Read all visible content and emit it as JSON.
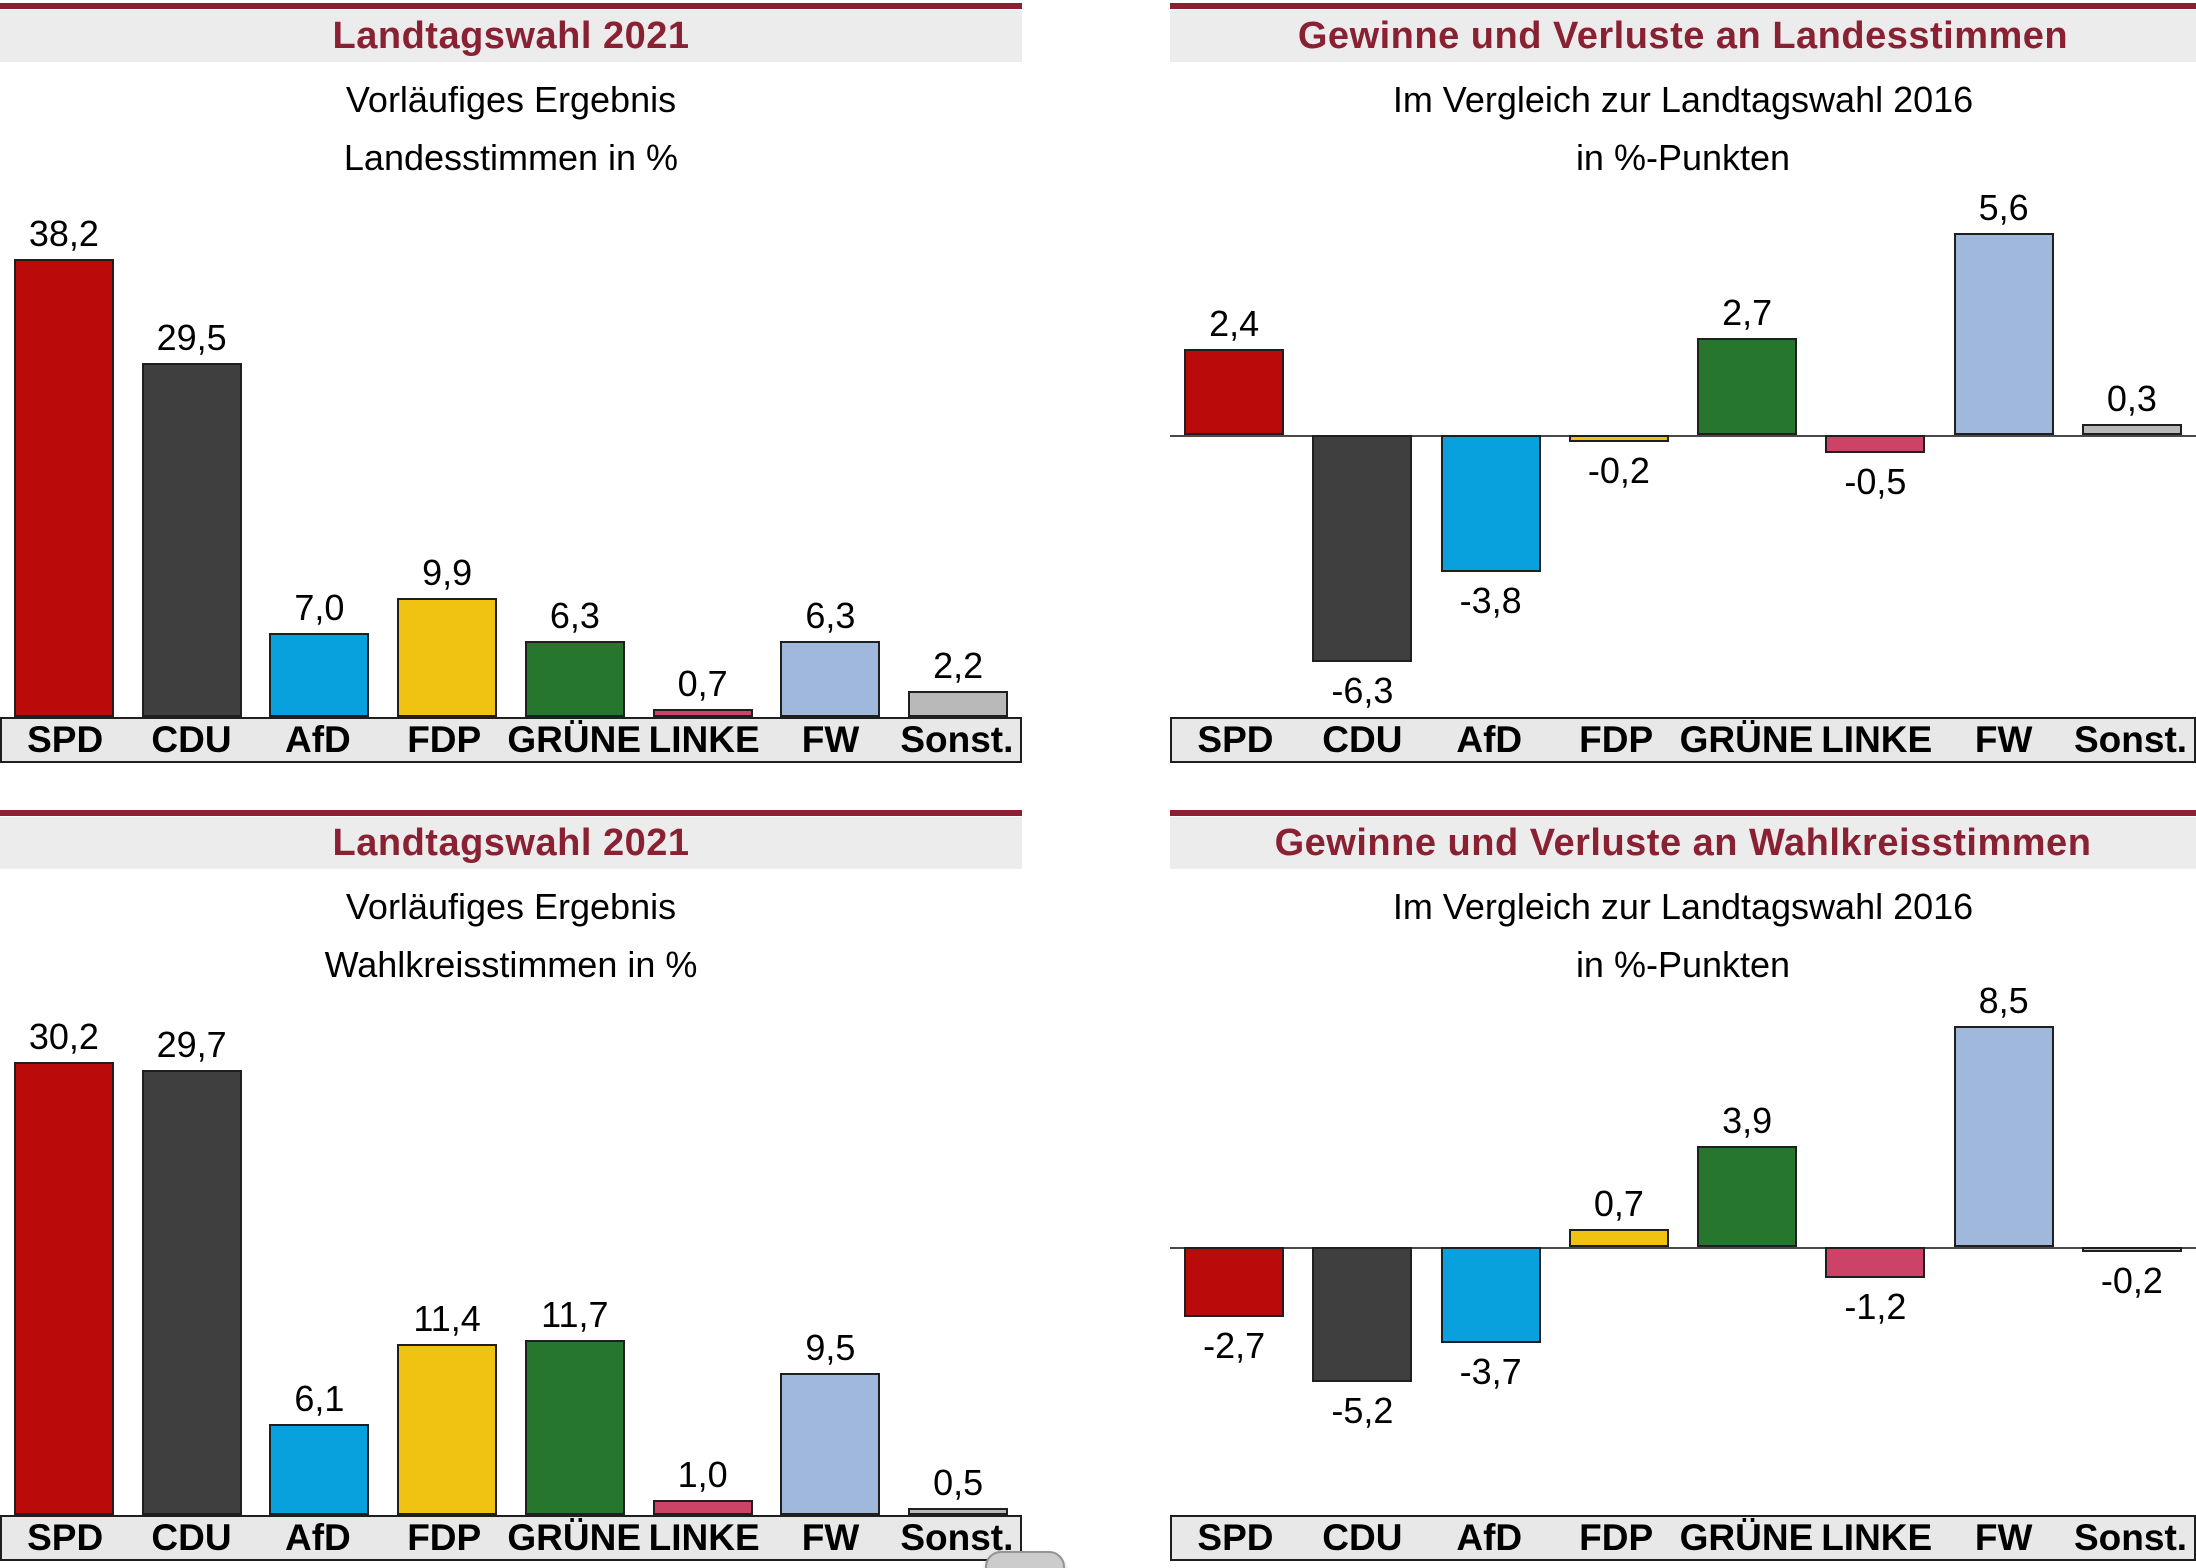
{
  "page": {
    "accent_maroon": "#8a2133",
    "header_band_bg": "#ececec",
    "axis_band_bg": "#e8e8e8",
    "background": "#ffffff"
  },
  "party_colors": {
    "SPD": "#bb0a0a",
    "CDU": "#3f3f3f",
    "AfD": "#09a1dd",
    "FDP": "#f0c313",
    "GRÜNE": "#27762e",
    "LINKE": "#cd4367",
    "FW": "#9fb8dc",
    "Sonst.": "#b9b9b9"
  },
  "icons": {
    "scroll_indicator": "gray rounded pill peeking from bottom edge"
  },
  "chart_data": [
    {
      "id": "landesstimmen-ergebnis",
      "type": "bar",
      "title": "Landtagswahl 2021",
      "subtitle_lines": [
        "Vorläufiges Ergebnis",
        "Landesstimmen in %"
      ],
      "categories": [
        "SPD",
        "CDU",
        "AfD",
        "FDP",
        "GRÜNE",
        "LINKE",
        "FW",
        "Sonst."
      ],
      "values": [
        38.2,
        29.5,
        7.0,
        9.9,
        6.3,
        0.7,
        6.3,
        2.2
      ],
      "value_labels": [
        "38,2",
        "29,5",
        "7,0",
        "9,9",
        "6,3",
        "0,7",
        "6,3",
        "2,2"
      ],
      "unit": "%",
      "ylim": [
        0,
        44
      ],
      "grid": false,
      "legend": false
    },
    {
      "id": "gewinne-verluste-landesstimmen",
      "type": "bar",
      "title": "Gewinne und Verluste an Landesstimmen",
      "subtitle_lines": [
        "Im Vergleich zur Landtagswahl 2016",
        "in %-Punkten"
      ],
      "categories": [
        "SPD",
        "CDU",
        "AfD",
        "FDP",
        "GRÜNE",
        "LINKE",
        "FW",
        "Sonst."
      ],
      "values": [
        2.4,
        -6.3,
        -3.8,
        -0.2,
        2.7,
        -0.5,
        5.6,
        0.3
      ],
      "value_labels": [
        "2,4",
        "-6,3",
        "-3,8",
        "-0,2",
        "2,7",
        "-0,5",
        "5,6",
        "0,3"
      ],
      "unit": "%-Punkte",
      "ylim": [
        -7.5,
        7.5
      ],
      "grid": false,
      "legend": false
    },
    {
      "id": "wahlkreisstimmen-ergebnis",
      "type": "bar",
      "title": "Landtagswahl 2021",
      "subtitle_lines": [
        "Vorläufiges Ergebnis",
        "Wahlkreisstimmen in %"
      ],
      "categories": [
        "SPD",
        "CDU",
        "AfD",
        "FDP",
        "GRÜNE",
        "LINKE",
        "FW",
        "Sonst."
      ],
      "values": [
        30.2,
        29.7,
        6.1,
        11.4,
        11.7,
        1.0,
        9.5,
        0.5
      ],
      "value_labels": [
        "30,2",
        "29,7",
        "6,1",
        "11,4",
        "11,7",
        "1,0",
        "9,5",
        "0,5"
      ],
      "unit": "%",
      "ylim": [
        0,
        35
      ],
      "grid": false,
      "legend": false
    },
    {
      "id": "gewinne-verluste-wahlkreisstimmen",
      "type": "bar",
      "title": "Gewinne und Verluste an Wahlkreisstimmen",
      "subtitle_lines": [
        "Im Vergleich zur Landtagswahl 2016",
        "in %-Punkten"
      ],
      "categories": [
        "SPD",
        "CDU",
        "AfD",
        "FDP",
        "GRÜNE",
        "LINKE",
        "FW",
        "Sonst."
      ],
      "values": [
        -2.7,
        -5.2,
        -3.7,
        0.7,
        3.9,
        -1.2,
        8.5,
        -0.2
      ],
      "value_labels": [
        "-2,7",
        "-5,2",
        "-3,7",
        "0,7",
        "3,9",
        "-1,2",
        "8,5",
        "-0,2"
      ],
      "unit": "%-Punkte",
      "ylim": [
        -7.5,
        10.5
      ],
      "grid": false,
      "legend": false
    }
  ]
}
